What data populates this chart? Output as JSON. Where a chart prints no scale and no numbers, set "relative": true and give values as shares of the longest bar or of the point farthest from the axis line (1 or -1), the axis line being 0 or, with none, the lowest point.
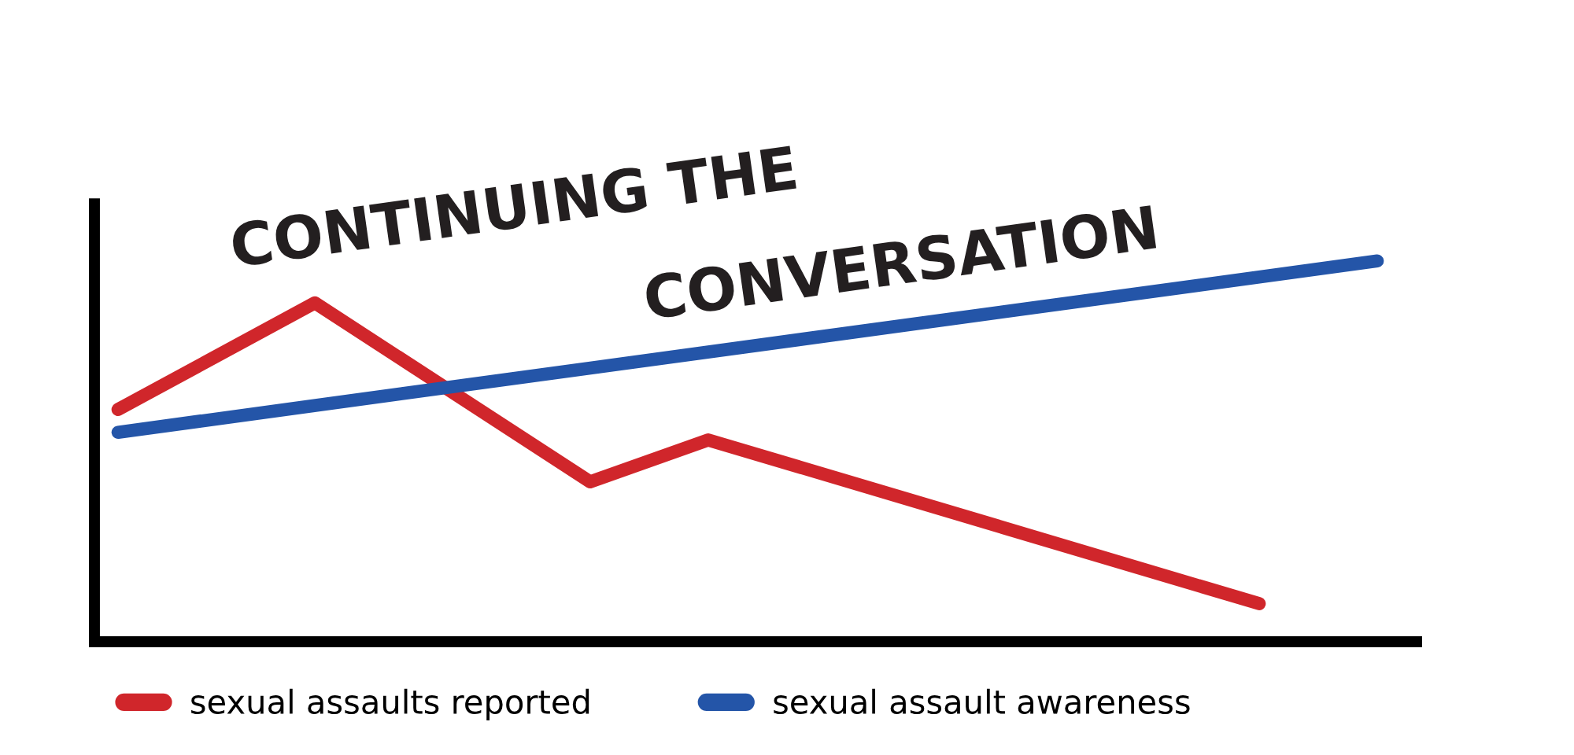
{
  "chart_data": {
    "type": "line",
    "title": "CONTINUING THE\nCONVERSATION",
    "relative": true,
    "categories": [
      null,
      null,
      null,
      null,
      null,
      null,
      null,
      null,
      null,
      null,
      null,
      null,
      null,
      null,
      null,
      null,
      null,
      null,
      null,
      null,
      null,
      null,
      null,
      null,
      null,
      null,
      null,
      null,
      null,
      null,
      null,
      null,
      null
    ],
    "series": [
      {
        "name": "sexual assaults reported",
        "color": "#d0262b",
        "values": [
          0.61,
          null,
          null,
          null,
          null,
          0.89,
          null,
          null,
          null,
          null,
          null,
          null,
          0.42,
          null,
          null,
          0.53,
          null,
          null,
          null,
          null,
          null,
          null,
          null,
          null,
          null,
          null,
          null,
          null,
          null,
          0.1,
          null,
          null,
          null
        ]
      },
      {
        "name": "sexual assault awareness",
        "color": "#2455a8",
        "values": [
          0.55,
          null,
          null,
          null,
          null,
          null,
          null,
          null,
          null,
          null,
          null,
          null,
          null,
          null,
          null,
          null,
          null,
          null,
          null,
          null,
          null,
          null,
          null,
          null,
          null,
          null,
          null,
          null,
          null,
          null,
          null,
          null,
          1
        ]
      }
    ],
    "legend": "bottom",
    "grid": false,
    "marker": "none",
    "line_style": "solid"
  }
}
